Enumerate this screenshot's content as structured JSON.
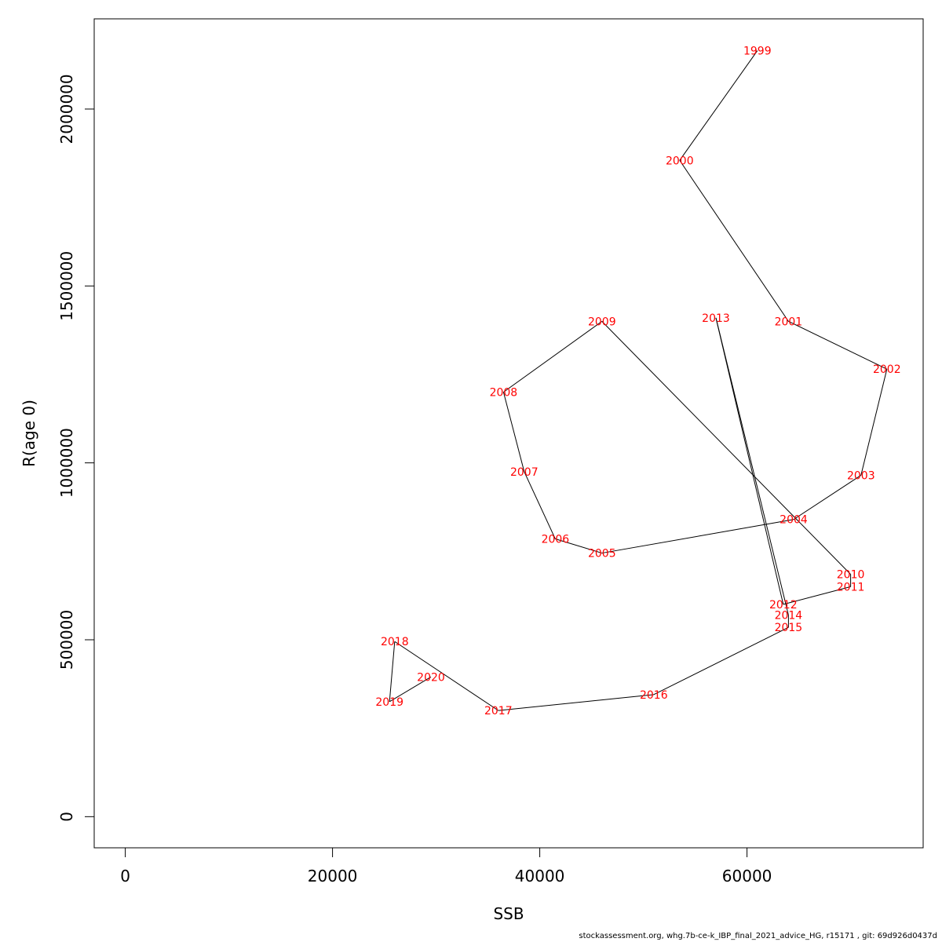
{
  "chart_data": {
    "type": "line",
    "xlabel": "SSB",
    "ylabel": "R(age 0)",
    "xlim": [
      -3000,
      77000
    ],
    "ylim": [
      -88000,
      2255000
    ],
    "x_ticks": [
      0,
      20000,
      40000,
      60000
    ],
    "x_tick_labels": [
      "0",
      "20000",
      "40000",
      "60000"
    ],
    "y_ticks": [
      0,
      500000,
      1000000,
      1500000,
      2000000
    ],
    "y_tick_labels": [
      "0",
      "500000",
      "1000000",
      "1500000",
      "2000000"
    ],
    "grid": false,
    "line_color": "#000000",
    "label_color": "#ff0000",
    "points": [
      {
        "label": "1999",
        "x": 61000,
        "y": 2165000
      },
      {
        "label": "2000",
        "x": 53500,
        "y": 1855000
      },
      {
        "label": "2001",
        "x": 64000,
        "y": 1400000
      },
      {
        "label": "2002",
        "x": 73500,
        "y": 1265000
      },
      {
        "label": "2003",
        "x": 71000,
        "y": 965000
      },
      {
        "label": "2004",
        "x": 64500,
        "y": 840000
      },
      {
        "label": "2005",
        "x": 46000,
        "y": 745000
      },
      {
        "label": "2006",
        "x": 41500,
        "y": 785000
      },
      {
        "label": "2007",
        "x": 38500,
        "y": 975000
      },
      {
        "label": "2008",
        "x": 36500,
        "y": 1200000
      },
      {
        "label": "2009",
        "x": 46000,
        "y": 1400000
      },
      {
        "label": "2010",
        "x": 70000,
        "y": 685000
      },
      {
        "label": "2011",
        "x": 70000,
        "y": 650000
      },
      {
        "label": "2012",
        "x": 63500,
        "y": 600000
      },
      {
        "label": "2013",
        "x": 57000,
        "y": 1410000
      },
      {
        "label": "2014",
        "x": 64000,
        "y": 570000
      },
      {
        "label": "2015",
        "x": 64000,
        "y": 535000
      },
      {
        "label": "2016",
        "x": 51000,
        "y": 345000
      },
      {
        "label": "2017",
        "x": 36000,
        "y": 300000
      },
      {
        "label": "2018",
        "x": 26000,
        "y": 495000
      },
      {
        "label": "2019",
        "x": 25500,
        "y": 325000
      },
      {
        "label": "2020",
        "x": 29500,
        "y": 395000
      }
    ]
  },
  "footer": "stockassessment.org, whg.7b-ce-k_IBP_final_2021_advice_HG, r15171 , git: 69d926d0437d"
}
